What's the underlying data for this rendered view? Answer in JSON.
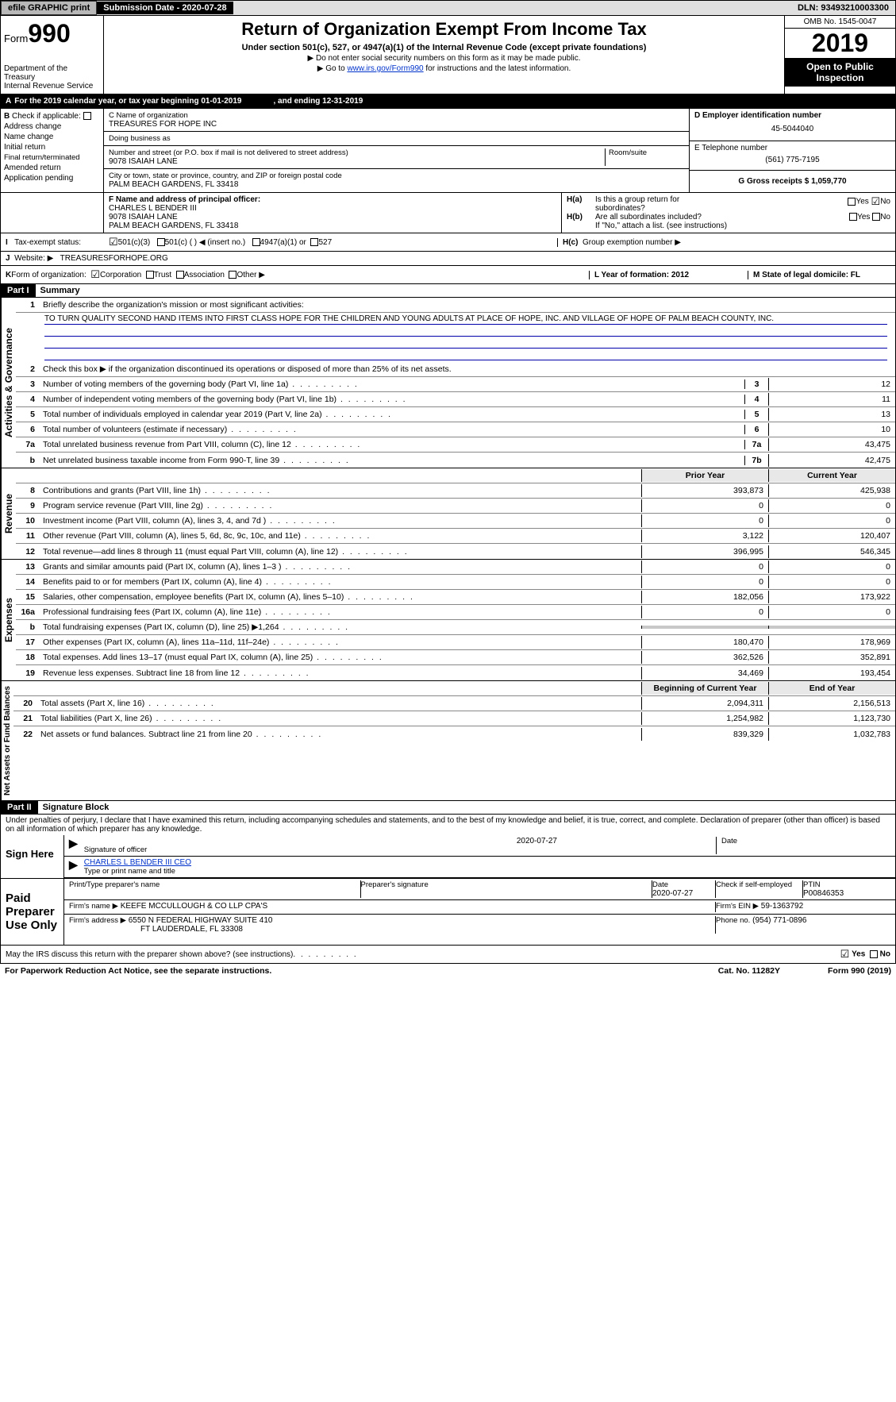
{
  "topbar": {
    "efile": "efile GRAPHIC print",
    "sub_label": "Submission Date - 2020-07-28",
    "dln": "DLN: 93493210003300"
  },
  "header": {
    "form_label": "Form",
    "form_no": "990",
    "dept": "Department of the Treasury",
    "irs": "Internal Revenue Service",
    "title": "Return of Organization Exempt From Income Tax",
    "subtitle": "Under section 501(c), 527, or 4947(a)(1) of the Internal Revenue Code (except private foundations)",
    "sub2a": "▶ Do not enter social security numbers on this form as it may be made public.",
    "sub2b_pre": "▶ Go to ",
    "sub2b_link": "www.irs.gov/Form990",
    "sub2b_post": " for instructions and the latest information.",
    "omb": "OMB No. 1545-0047",
    "year": "2019",
    "otp": "Open to Public Inspection"
  },
  "A": {
    "text": "For the 2019 calendar year, or tax year beginning 01-01-2019",
    "mid": ", and ending 12-31-2019"
  },
  "B": {
    "title": "Check if applicable:",
    "items": [
      "Address change",
      "Name change",
      "Initial return",
      "Final return/terminated",
      "Amended return",
      "Application pending"
    ]
  },
  "C": {
    "label": "C Name of organization",
    "name": "TREASURES FOR HOPE INC",
    "dba_label": "Doing business as",
    "dba": "",
    "addr_label": "Number and street (or P.O. box if mail is not delivered to street address)",
    "room_label": "Room/suite",
    "addr": "9078 ISAIAH LANE",
    "city_label": "City or town, state or province, country, and ZIP or foreign postal code",
    "city": "PALM BEACH GARDENS, FL  33418"
  },
  "D": {
    "label": "D Employer identification number",
    "val": "45-5044040"
  },
  "E": {
    "label": "E Telephone number",
    "val": "(561) 775-7195"
  },
  "G": {
    "label": "G Gross receipts $ 1,059,770"
  },
  "F": {
    "label": "F  Name and address of principal officer:",
    "name": "CHARLES L BENDER III",
    "addr1": "9078 ISAIAH LANE",
    "addr2": "PALM BEACH GARDENS, FL  33418"
  },
  "H": {
    "a": "Is this a group return for",
    "a2": "subordinates?",
    "b": "Are all subordinates included?",
    "b2": "If \"No,\" attach a list. (see instructions)",
    "c": "Group exemption number ▶",
    "yes": "Yes",
    "no": "No"
  },
  "I": {
    "label": "Tax-exempt status:",
    "opts": [
      "501(c)(3)",
      "501(c) (  ) ◀ (insert no.)",
      "4947(a)(1) or",
      "527"
    ]
  },
  "J": {
    "label": "Website: ▶",
    "val": "TREASURESFORHOPE.ORG"
  },
  "K": {
    "label": "Form of organization:",
    "opts": [
      "Corporation",
      "Trust",
      "Association",
      "Other ▶"
    ]
  },
  "L": {
    "label": "L Year of formation: 2012"
  },
  "M": {
    "label": "M State of legal domicile: FL"
  },
  "part1": {
    "hdr": "Part I",
    "title": "Summary"
  },
  "summary": {
    "mission_label": "Briefly describe the organization's mission or most significant activities:",
    "mission": "TO TURN QUALITY SECOND HAND ITEMS INTO FIRST CLASS HOPE FOR THE CHILDREN AND YOUNG ADULTS AT PLACE OF HOPE, INC. AND VILLAGE OF HOPE OF PALM BEACH COUNTY, INC.",
    "line2": "Check this box ▶       if the organization discontinued its operations or disposed of more than 25% of its net assets.",
    "prior_hdr": "Prior Year",
    "curr_hdr": "Current Year",
    "boy_hdr": "Beginning of Current Year",
    "eoy_hdr": "End of Year",
    "rows_ag": [
      {
        "n": "3",
        "t": "Number of voting members of the governing body (Part VI, line 1a)",
        "box": "3",
        "v": "12"
      },
      {
        "n": "4",
        "t": "Number of independent voting members of the governing body (Part VI, line 1b)",
        "box": "4",
        "v": "11"
      },
      {
        "n": "5",
        "t": "Total number of individuals employed in calendar year 2019 (Part V, line 2a)",
        "box": "5",
        "v": "13"
      },
      {
        "n": "6",
        "t": "Total number of volunteers (estimate if necessary)",
        "box": "6",
        "v": "10"
      },
      {
        "n": "7a",
        "t": "Total unrelated business revenue from Part VIII, column (C), line 12",
        "box": "7a",
        "v": "43,475"
      },
      {
        "n": "b",
        "t": "Net unrelated business taxable income from Form 990-T, line 39",
        "box": "7b",
        "v": "42,475"
      }
    ],
    "rows_rev": [
      {
        "n": "8",
        "t": "Contributions and grants (Part VIII, line 1h)",
        "p": "393,873",
        "c": "425,938"
      },
      {
        "n": "9",
        "t": "Program service revenue (Part VIII, line 2g)",
        "p": "0",
        "c": "0"
      },
      {
        "n": "10",
        "t": "Investment income (Part VIII, column (A), lines 3, 4, and 7d )",
        "p": "0",
        "c": "0"
      },
      {
        "n": "11",
        "t": "Other revenue (Part VIII, column (A), lines 5, 6d, 8c, 9c, 10c, and 11e)",
        "p": "3,122",
        "c": "120,407"
      },
      {
        "n": "12",
        "t": "Total revenue—add lines 8 through 11 (must equal Part VIII, column (A), line 12)",
        "p": "396,995",
        "c": "546,345"
      }
    ],
    "rows_exp": [
      {
        "n": "13",
        "t": "Grants and similar amounts paid (Part IX, column (A), lines 1–3 )",
        "p": "0",
        "c": "0"
      },
      {
        "n": "14",
        "t": "Benefits paid to or for members (Part IX, column (A), line 4)",
        "p": "0",
        "c": "0"
      },
      {
        "n": "15",
        "t": "Salaries, other compensation, employee benefits (Part IX, column (A), lines 5–10)",
        "p": "182,056",
        "c": "173,922"
      },
      {
        "n": "16a",
        "t": "Professional fundraising fees (Part IX, column (A), line 11e)",
        "p": "0",
        "c": "0"
      },
      {
        "n": "b",
        "t": "Total fundraising expenses (Part IX, column (D), line 25) ▶1,264",
        "p": "",
        "c": "",
        "shade": true
      },
      {
        "n": "17",
        "t": "Other expenses (Part IX, column (A), lines 11a–11d, 11f–24e)",
        "p": "180,470",
        "c": "178,969"
      },
      {
        "n": "18",
        "t": "Total expenses. Add lines 13–17 (must equal Part IX, column (A), line 25)",
        "p": "362,526",
        "c": "352,891"
      },
      {
        "n": "19",
        "t": "Revenue less expenses. Subtract line 18 from line 12",
        "p": "34,469",
        "c": "193,454"
      }
    ],
    "rows_na": [
      {
        "n": "20",
        "t": "Total assets (Part X, line 16)",
        "p": "2,094,311",
        "c": "2,156,513"
      },
      {
        "n": "21",
        "t": "Total liabilities (Part X, line 26)",
        "p": "1,254,982",
        "c": "1,123,730"
      },
      {
        "n": "22",
        "t": "Net assets or fund balances. Subtract line 21 from line 20",
        "p": "839,329",
        "c": "1,032,783"
      }
    ]
  },
  "vlabels": {
    "ag": "Activities & Governance",
    "rev": "Revenue",
    "exp": "Expenses",
    "na": "Net Assets or\nFund Balances"
  },
  "part2": {
    "hdr": "Part II",
    "title": "Signature Block"
  },
  "sig": {
    "perjury": "Under penalties of perjury, I declare that I have examined this return, including accompanying schedules and statements, and to the best of my knowledge and belief, it is true, correct, and complete. Declaration of preparer (other than officer) is based on all information of which preparer has any knowledge.",
    "sign_here": "Sign Here",
    "sig_officer": "Signature of officer",
    "date": "Date",
    "date_val": "2020-07-27",
    "name": "CHARLES L BENDER III  CEO",
    "name_lbl": "Type or print name and title",
    "paid": "Paid Preparer Use Only",
    "col1": "Print/Type preparer's name",
    "col2": "Preparer's signature",
    "col3": "Date",
    "col3v": "2020-07-27",
    "col4": "Check        if self-employed",
    "col5": "PTIN",
    "col5v": "P00846353",
    "firm_name_lbl": "Firm's name    ▶",
    "firm_name": "KEEFE MCCULLOUGH & CO LLP CPA'S",
    "firm_ein_lbl": "Firm's EIN ▶",
    "firm_ein": "59-1363792",
    "firm_addr_lbl": "Firm's address ▶",
    "firm_addr1": "6550 N FEDERAL HIGHWAY SUITE 410",
    "firm_addr2": "FT LAUDERDALE, FL  33308",
    "phone_lbl": "Phone no.",
    "phone": "(954) 771-0896",
    "irs_q": "May the IRS discuss this return with the preparer shown above? (see instructions)"
  },
  "footer": {
    "left": "For Paperwork Reduction Act Notice, see the separate instructions.",
    "mid": "Cat. No. 11282Y",
    "right": "Form 990 (2019)"
  }
}
